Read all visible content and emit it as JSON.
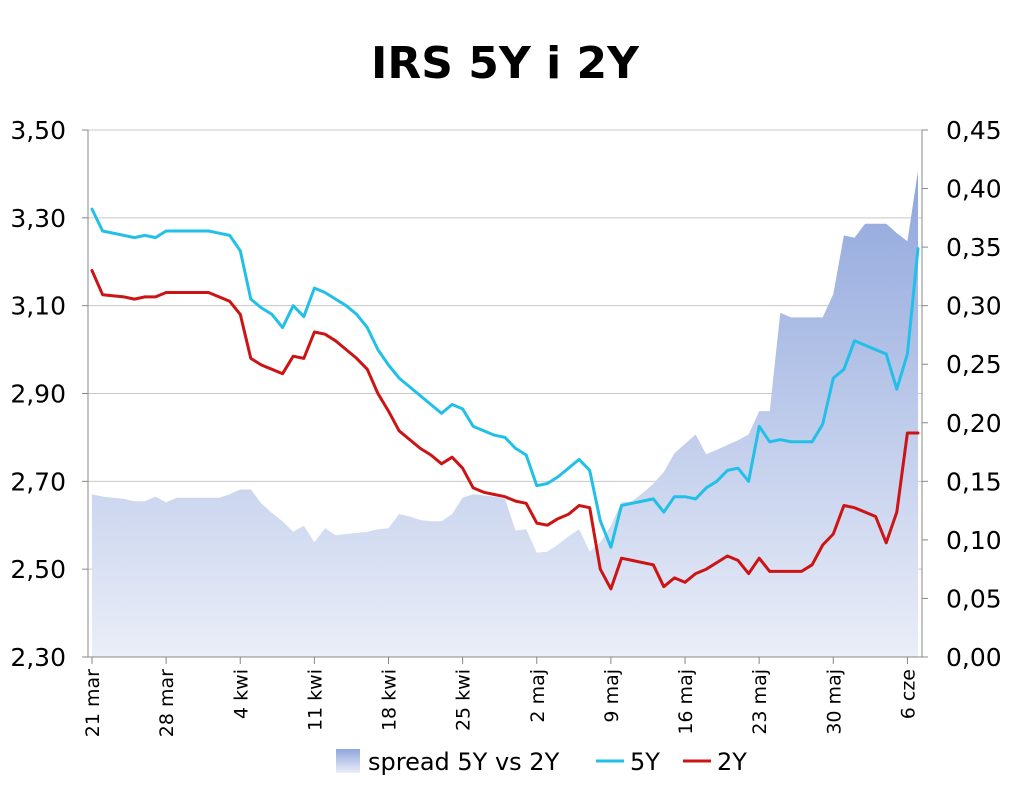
{
  "chart_data": {
    "type": "line",
    "title": "IRS 5Y i 2Y",
    "legend_position": "bottom",
    "grid": "horizontal",
    "x_tick_labels": [
      "21 mar",
      "28 mar",
      "4 kwi",
      "11 kwi",
      "18 kwi",
      "25 kwi",
      "2 maj",
      "9 maj",
      "16 maj",
      "23 maj",
      "30 maj",
      "6 cze"
    ],
    "y_left": {
      "range": [
        2.3,
        3.5
      ],
      "ticks": [
        "2,30",
        "2,50",
        "2,70",
        "2,90",
        "3,10",
        "3,30",
        "3,50"
      ]
    },
    "y_right": {
      "range": [
        0.0,
        0.45
      ],
      "ticks": [
        "0,00",
        "0,05",
        "0,10",
        "0,15",
        "0,20",
        "0,25",
        "0,30",
        "0,35",
        "0,40",
        "0,45"
      ]
    },
    "x_range": [
      0,
      78
    ],
    "series": [
      {
        "name": "spread 5Y vs 2Y",
        "kind": "area",
        "axis": "right",
        "color": "#9badde",
        "points": [
          [
            0,
            0.139
          ],
          [
            1,
            0.137
          ],
          [
            3,
            0.135
          ],
          [
            4,
            0.133
          ],
          [
            5,
            0.133
          ],
          [
            6,
            0.137
          ],
          [
            7,
            0.132
          ],
          [
            8,
            0.136
          ],
          [
            10,
            0.136
          ],
          [
            11,
            0.136
          ],
          [
            12,
            0.136
          ],
          [
            13,
            0.139
          ],
          [
            14,
            0.143
          ],
          [
            15,
            0.143
          ],
          [
            16,
            0.131
          ],
          [
            17,
            0.123
          ],
          [
            18,
            0.116
          ],
          [
            19,
            0.107
          ],
          [
            20,
            0.112
          ],
          [
            21,
            0.098
          ],
          [
            22,
            0.11
          ],
          [
            23,
            0.104
          ],
          [
            24,
            0.105
          ],
          [
            25,
            0.106
          ],
          [
            26,
            0.107
          ],
          [
            27,
            0.109
          ],
          [
            28,
            0.11
          ],
          [
            29,
            0.122
          ],
          [
            30,
            0.12
          ],
          [
            31,
            0.117
          ],
          [
            32,
            0.116
          ],
          [
            33,
            0.116
          ],
          [
            34,
            0.122
          ],
          [
            35,
            0.136
          ],
          [
            36,
            0.139
          ],
          [
            37,
            0.138
          ],
          [
            38,
            0.137
          ],
          [
            39,
            0.135
          ],
          [
            40,
            0.108
          ],
          [
            41,
            0.109
          ],
          [
            42,
            0.089
          ],
          [
            43,
            0.09
          ],
          [
            44,
            0.096
          ],
          [
            45,
            0.103
          ],
          [
            46,
            0.109
          ],
          [
            47,
            0.09
          ],
          [
            48,
            0.098
          ],
          [
            49,
            0.112
          ],
          [
            50,
            0.132
          ],
          [
            51,
            0.133
          ],
          [
            52,
            0.14
          ],
          [
            53,
            0.148
          ],
          [
            54,
            0.158
          ],
          [
            55,
            0.174
          ],
          [
            56,
            0.182
          ],
          [
            57,
            0.19
          ],
          [
            58,
            0.173
          ],
          [
            59,
            0.177
          ],
          [
            60,
            0.181
          ],
          [
            61,
            0.185
          ],
          [
            62,
            0.19
          ],
          [
            63,
            0.21
          ],
          [
            64,
            0.21
          ],
          [
            65,
            0.294
          ],
          [
            66,
            0.29
          ],
          [
            67,
            0.29
          ],
          [
            68,
            0.29
          ],
          [
            69,
            0.29
          ],
          [
            70,
            0.31
          ],
          [
            71,
            0.36
          ],
          [
            72,
            0.358
          ],
          [
            73,
            0.37
          ],
          [
            74,
            0.37
          ],
          [
            75,
            0.37
          ],
          [
            76,
            0.362
          ],
          [
            77,
            0.355
          ],
          [
            78,
            0.415
          ]
        ]
      },
      {
        "name": "5Y",
        "kind": "line",
        "axis": "left",
        "color": "#22c0e8",
        "points": [
          [
            0,
            3.32
          ],
          [
            1,
            3.27
          ],
          [
            3,
            3.26
          ],
          [
            4,
            3.255
          ],
          [
            5,
            3.26
          ],
          [
            6,
            3.255
          ],
          [
            7,
            3.27
          ],
          [
            8,
            3.27
          ],
          [
            11,
            3.27
          ],
          [
            12,
            3.265
          ],
          [
            13,
            3.26
          ],
          [
            14,
            3.225
          ],
          [
            15,
            3.115
          ],
          [
            16,
            3.095
          ],
          [
            17,
            3.08
          ],
          [
            18,
            3.05
          ],
          [
            19,
            3.1
          ],
          [
            20,
            3.075
          ],
          [
            21,
            3.14
          ],
          [
            22,
            3.13
          ],
          [
            23,
            3.115
          ],
          [
            24,
            3.1
          ],
          [
            25,
            3.08
          ],
          [
            26,
            3.05
          ],
          [
            27,
            3.0
          ],
          [
            28,
            2.965
          ],
          [
            29,
            2.935
          ],
          [
            30,
            2.915
          ],
          [
            31,
            2.895
          ],
          [
            32,
            2.875
          ],
          [
            33,
            2.855
          ],
          [
            34,
            2.875
          ],
          [
            35,
            2.865
          ],
          [
            36,
            2.825
          ],
          [
            37,
            2.815
          ],
          [
            38,
            2.805
          ],
          [
            39,
            2.8
          ],
          [
            40,
            2.775
          ],
          [
            41,
            2.76
          ],
          [
            42,
            2.69
          ],
          [
            43,
            2.695
          ],
          [
            44,
            2.71
          ],
          [
            45,
            2.73
          ],
          [
            46,
            2.75
          ],
          [
            47,
            2.725
          ],
          [
            48,
            2.61
          ],
          [
            49,
            2.55
          ],
          [
            50,
            2.645
          ],
          [
            51,
            2.65
          ],
          [
            52,
            2.655
          ],
          [
            53,
            2.66
          ],
          [
            54,
            2.63
          ],
          [
            55,
            2.665
          ],
          [
            56,
            2.665
          ],
          [
            57,
            2.66
          ],
          [
            58,
            2.685
          ],
          [
            59,
            2.7
          ],
          [
            60,
            2.725
          ],
          [
            61,
            2.73
          ],
          [
            62,
            2.7
          ],
          [
            63,
            2.825
          ],
          [
            64,
            2.79
          ],
          [
            65,
            2.795
          ],
          [
            66,
            2.79
          ],
          [
            67,
            2.79
          ],
          [
            68,
            2.79
          ],
          [
            69,
            2.83
          ],
          [
            70,
            2.935
          ],
          [
            71,
            2.955
          ],
          [
            72,
            3.02
          ],
          [
            73,
            3.01
          ],
          [
            74,
            3.0
          ],
          [
            75,
            2.99
          ],
          [
            76,
            2.91
          ],
          [
            77,
            2.99
          ],
          [
            78,
            3.23
          ]
        ]
      },
      {
        "name": "2Y",
        "kind": "line",
        "axis": "left",
        "color": "#cc1414",
        "points": [
          [
            0,
            3.18
          ],
          [
            1,
            3.125
          ],
          [
            3,
            3.12
          ],
          [
            4,
            3.115
          ],
          [
            5,
            3.12
          ],
          [
            6,
            3.12
          ],
          [
            7,
            3.13
          ],
          [
            8,
            3.13
          ],
          [
            11,
            3.13
          ],
          [
            12,
            3.12
          ],
          [
            13,
            3.11
          ],
          [
            14,
            3.08
          ],
          [
            15,
            2.98
          ],
          [
            16,
            2.965
          ],
          [
            17,
            2.955
          ],
          [
            18,
            2.945
          ],
          [
            19,
            2.985
          ],
          [
            20,
            2.98
          ],
          [
            21,
            3.04
          ],
          [
            22,
            3.035
          ],
          [
            23,
            3.02
          ],
          [
            24,
            3.0
          ],
          [
            25,
            2.98
          ],
          [
            26,
            2.955
          ],
          [
            27,
            2.9
          ],
          [
            28,
            2.86
          ],
          [
            29,
            2.815
          ],
          [
            30,
            2.795
          ],
          [
            31,
            2.775
          ],
          [
            32,
            2.76
          ],
          [
            33,
            2.74
          ],
          [
            34,
            2.755
          ],
          [
            35,
            2.73
          ],
          [
            36,
            2.685
          ],
          [
            37,
            2.675
          ],
          [
            38,
            2.67
          ],
          [
            39,
            2.665
          ],
          [
            40,
            2.655
          ],
          [
            41,
            2.65
          ],
          [
            42,
            2.605
          ],
          [
            43,
            2.6
          ],
          [
            44,
            2.615
          ],
          [
            45,
            2.625
          ],
          [
            46,
            2.645
          ],
          [
            47,
            2.64
          ],
          [
            48,
            2.5
          ],
          [
            49,
            2.455
          ],
          [
            50,
            2.525
          ],
          [
            51,
            2.52
          ],
          [
            52,
            2.515
          ],
          [
            53,
            2.51
          ],
          [
            54,
            2.46
          ],
          [
            55,
            2.48
          ],
          [
            56,
            2.47
          ],
          [
            57,
            2.49
          ],
          [
            58,
            2.5
          ],
          [
            59,
            2.515
          ],
          [
            60,
            2.53
          ],
          [
            61,
            2.52
          ],
          [
            62,
            2.49
          ],
          [
            63,
            2.525
          ],
          [
            64,
            2.495
          ],
          [
            65,
            2.495
          ],
          [
            66,
            2.495
          ],
          [
            67,
            2.495
          ],
          [
            68,
            2.51
          ],
          [
            69,
            2.555
          ],
          [
            70,
            2.58
          ],
          [
            71,
            2.645
          ],
          [
            72,
            2.64
          ],
          [
            73,
            2.63
          ],
          [
            74,
            2.62
          ],
          [
            75,
            2.56
          ],
          [
            76,
            2.63
          ],
          [
            77,
            2.81
          ],
          [
            78,
            2.81
          ]
        ]
      }
    ]
  }
}
